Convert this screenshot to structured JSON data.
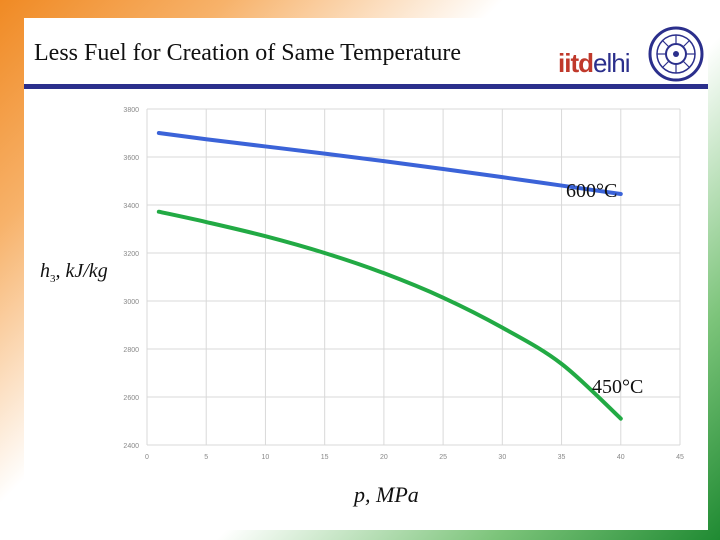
{
  "slide": {
    "title": "Less Fuel for Creation of Same Temperature",
    "logo": {
      "part1": "iitd",
      "part2": "elhi"
    },
    "colors": {
      "rule": "#2b2f8c",
      "logo_red": "#c0392b",
      "logo_blue": "#2b2f8c"
    }
  },
  "chart_data": {
    "type": "line",
    "title": "",
    "xlabel": "p, MPa",
    "ylabel_main": "h",
    "ylabel_sub": "3",
    "ylabel_units": "kJ/kg",
    "xlim": [
      0,
      45
    ],
    "ylim": [
      2400,
      3800
    ],
    "x_ticks": [
      0,
      5,
      10,
      15,
      20,
      25,
      30,
      35,
      40,
      45
    ],
    "y_ticks": [
      2400,
      2600,
      2800,
      3000,
      3200,
      3400,
      3600,
      3800
    ],
    "grid": true,
    "series": [
      {
        "name": "600°C",
        "color": "#3b63d8",
        "x": [
          1,
          5,
          10,
          15,
          20,
          25,
          30,
          35,
          40
        ],
        "y": [
          3700,
          3674,
          3644,
          3614,
          3583,
          3550,
          3516,
          3481,
          3446
        ]
      },
      {
        "name": "450°C",
        "color": "#22aa44",
        "x": [
          1,
          5,
          10,
          15,
          20,
          25,
          30,
          35,
          40
        ],
        "y": [
          3372,
          3329,
          3270,
          3200,
          3116,
          3014,
          2889,
          2738,
          2510
        ]
      }
    ],
    "annotations": [
      {
        "text": "600°C",
        "series": 0
      },
      {
        "text": "450°C",
        "series": 1
      }
    ]
  }
}
